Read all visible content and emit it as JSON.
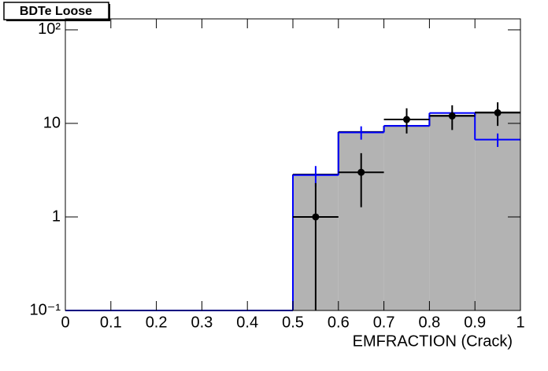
{
  "chart_data": {
    "type": "histogram",
    "title": "BDTe Loose",
    "x_label": "EMFRACTION (Crack)",
    "bins": [
      0,
      0.1,
      0.2,
      0.3,
      0.4,
      0.5,
      0.6,
      0.7,
      0.8,
      0.9,
      1
    ],
    "series": [
      {
        "color": "#b3b3b3",
        "edge_color": "#000000",
        "values": [
          0,
          0,
          0,
          0,
          0,
          2.84,
          8.1,
          9.4,
          12.1,
          13.1
        ]
      },
      {
        "color": "#0000ff",
        "values": [
          0,
          0,
          0,
          0,
          0,
          2.8,
          8.0,
          9.4,
          12.9,
          6.7
        ],
        "errors": [
          0,
          0,
          0,
          0,
          0,
          0.7,
          1.3,
          0.4,
          0.4,
          1.1
        ]
      }
    ],
    "points": {
      "color": "#000000",
      "x": [
        0.55,
        0.65,
        0.75,
        0.85,
        0.95
      ],
      "values": [
        1,
        3.0,
        11,
        12,
        13
      ],
      "err_low": [
        1,
        1.73,
        3.2,
        3.5,
        3.6
      ],
      "err_high": [
        1.3,
        1.8,
        3.5,
        3.6,
        3.8
      ]
    },
    "xlim": [
      0,
      1
    ],
    "xticks": [
      0,
      0.1,
      0.2,
      0.3,
      0.4,
      0.5,
      0.6,
      0.7,
      0.8,
      0.9,
      1
    ],
    "ylim": [
      0.1,
      131
    ],
    "yticks": [
      {
        "value": 0.1,
        "label": "10⁻¹"
      },
      1,
      10,
      {
        "value": 100,
        "label": "10²"
      }
    ],
    "log_y": true
  }
}
